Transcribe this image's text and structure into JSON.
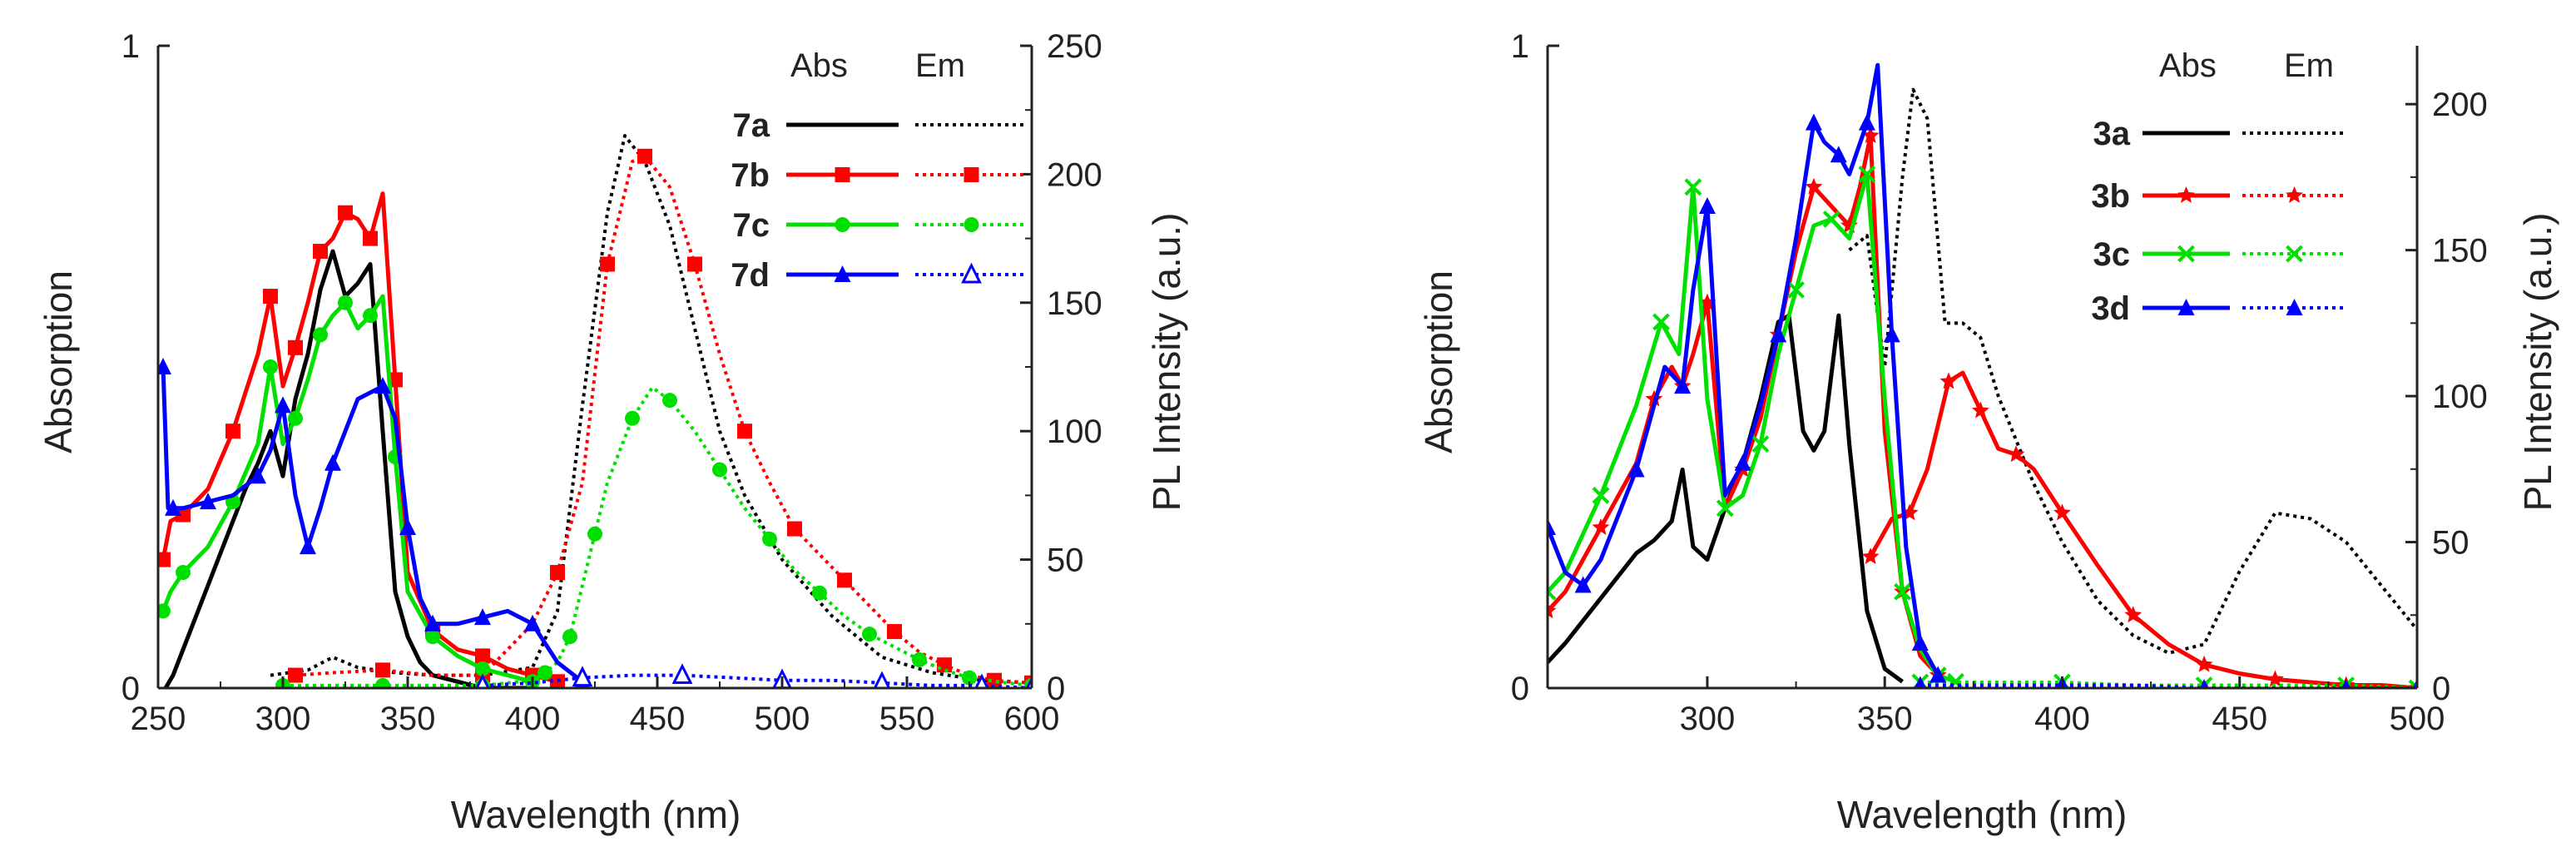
{
  "colors": {
    "black": "#000000",
    "red": "#ff0000",
    "green": "#00e000",
    "blue": "#0000ff"
  },
  "chart_data": [
    {
      "type": "line",
      "xlabel": "Wavelength (nm)",
      "ylabel": "Absorption",
      "y2label": "PL Intensity (a.u.)",
      "xlim": [
        250,
        600
      ],
      "ylim": [
        0,
        1
      ],
      "y2lim": [
        0,
        250
      ],
      "xticks": [
        250,
        300,
        350,
        400,
        450,
        500,
        550,
        600
      ],
      "xtick_labels": [
        "250",
        "300",
        "350",
        "400",
        "450",
        "500",
        "550",
        "600"
      ],
      "yticks": [
        0,
        1
      ],
      "ytick_labels": [
        "0",
        "1"
      ],
      "y2ticks": [
        0,
        50,
        100,
        150,
        200,
        250
      ],
      "y2tick_labels": [
        "0",
        "50",
        "100",
        "150",
        "200",
        "250"
      ],
      "legend": {
        "headers": [
          "Abs",
          "Em"
        ],
        "entries": [
          "7a",
          "7b",
          "7c",
          "7d"
        ],
        "position": "top-right"
      },
      "series": [
        {
          "name": "7a Abs",
          "color": "#000000",
          "style": "solid",
          "marker": "none",
          "axis": "left",
          "x": [
            253,
            256,
            260,
            265,
            270,
            275,
            280,
            285,
            290,
            295,
            300,
            305,
            310,
            315,
            320,
            325,
            330,
            335,
            340,
            345,
            350,
            355,
            360,
            370,
            380,
            390,
            400
          ],
          "y": [
            0.0,
            0.02,
            0.06,
            0.11,
            0.16,
            0.21,
            0.26,
            0.31,
            0.35,
            0.4,
            0.33,
            0.45,
            0.52,
            0.62,
            0.68,
            0.61,
            0.63,
            0.66,
            0.4,
            0.15,
            0.08,
            0.04,
            0.02,
            0.01,
            0.0,
            0.0,
            0.0
          ]
        },
        {
          "name": "7a Em",
          "color": "#000000",
          "style": "dotted",
          "marker": "none",
          "axis": "right",
          "x": [
            295,
            310,
            320,
            330,
            345,
            360,
            380,
            400,
            410,
            420,
            430,
            437,
            445,
            455,
            465,
            475,
            485,
            500,
            520,
            540,
            560,
            580,
            600
          ],
          "y": [
            5,
            7,
            12,
            8,
            6,
            5,
            5,
            8,
            30,
            110,
            185,
            215,
            205,
            180,
            140,
            100,
            75,
            50,
            28,
            12,
            6,
            3,
            2
          ]
        },
        {
          "name": "7b Abs",
          "color": "#ff0000",
          "style": "solid",
          "marker": "square",
          "axis": "left",
          "x": [
            252,
            255,
            260,
            270,
            280,
            290,
            295,
            300,
            305,
            310,
            315,
            320,
            325,
            330,
            335,
            340,
            345,
            350,
            360,
            370,
            380,
            390,
            400,
            410
          ],
          "y": [
            0.2,
            0.26,
            0.27,
            0.31,
            0.4,
            0.52,
            0.61,
            0.47,
            0.53,
            0.6,
            0.68,
            0.7,
            0.74,
            0.73,
            0.7,
            0.77,
            0.48,
            0.18,
            0.09,
            0.06,
            0.05,
            0.03,
            0.02,
            0.01
          ]
        },
        {
          "name": "7b Em",
          "color": "#ff0000",
          "style": "dotted",
          "marker": "square",
          "axis": "right",
          "x": [
            305,
            320,
            340,
            360,
            380,
            400,
            410,
            420,
            430,
            440,
            445,
            455,
            465,
            475,
            485,
            495,
            505,
            515,
            525,
            535,
            545,
            555,
            565,
            575,
            585,
            600
          ],
          "y": [
            5,
            6,
            7,
            5,
            5,
            25,
            45,
            80,
            165,
            205,
            207,
            195,
            165,
            130,
            100,
            80,
            62,
            52,
            42,
            32,
            22,
            14,
            9,
            5,
            3,
            2
          ]
        },
        {
          "name": "7c Abs",
          "color": "#00e000",
          "style": "solid",
          "marker": "circle",
          "axis": "left",
          "x": [
            252,
            255,
            260,
            270,
            280,
            290,
            295,
            300,
            305,
            310,
            315,
            320,
            325,
            330,
            335,
            340,
            345,
            350,
            360,
            370,
            380,
            390,
            400
          ],
          "y": [
            0.12,
            0.15,
            0.18,
            0.22,
            0.29,
            0.38,
            0.5,
            0.38,
            0.42,
            0.48,
            0.55,
            0.58,
            0.6,
            0.56,
            0.58,
            0.61,
            0.36,
            0.15,
            0.08,
            0.05,
            0.03,
            0.02,
            0.01
          ]
        },
        {
          "name": "7c Em",
          "color": "#00e000",
          "style": "dotted",
          "marker": "circle",
          "axis": "right",
          "x": [
            300,
            320,
            340,
            360,
            380,
            400,
            405,
            410,
            415,
            420,
            425,
            430,
            440,
            448,
            455,
            465,
            475,
            485,
            495,
            505,
            515,
            525,
            535,
            545,
            555,
            565,
            575,
            590,
            600
          ],
          "y": [
            1,
            1,
            1,
            1,
            1,
            3,
            6,
            10,
            20,
            40,
            60,
            80,
            105,
            117,
            112,
            100,
            85,
            70,
            58,
            46,
            37,
            28,
            21,
            16,
            11,
            7,
            4,
            2,
            1
          ]
        },
        {
          "name": "7d Abs",
          "color": "#0000ff",
          "style": "solid",
          "marker": "triangle",
          "axis": "left",
          "x": [
            252,
            254,
            256,
            260,
            270,
            280,
            290,
            295,
            300,
            305,
            310,
            315,
            320,
            330,
            340,
            345,
            350,
            355,
            360,
            370,
            380,
            390,
            400,
            410,
            420
          ],
          "y": [
            0.5,
            0.28,
            0.28,
            0.28,
            0.29,
            0.3,
            0.33,
            0.37,
            0.44,
            0.3,
            0.22,
            0.28,
            0.35,
            0.45,
            0.47,
            0.42,
            0.25,
            0.14,
            0.1,
            0.1,
            0.11,
            0.12,
            0.1,
            0.04,
            0.01
          ]
        },
        {
          "name": "7d Em",
          "color": "#0000ff",
          "style": "dotted",
          "marker": "triangle-open",
          "axis": "right",
          "x": [
            380,
            400,
            420,
            440,
            460,
            480,
            500,
            520,
            540,
            560,
            580,
            600
          ],
          "y": [
            1,
            2,
            4,
            5,
            5,
            4,
            3,
            3,
            2,
            1,
            1,
            0
          ]
        }
      ]
    },
    {
      "type": "line",
      "xlabel": "Wavelength (nm)",
      "ylabel": "Absorption",
      "y2label": "PL Intensity (a.u.)",
      "xlim": [
        255,
        500
      ],
      "ylim": [
        0,
        1
      ],
      "y2lim": [
        0,
        220
      ],
      "xticks": [
        300,
        350,
        400,
        450,
        500
      ],
      "xtick_labels": [
        "300",
        "350",
        "400",
        "450",
        "500"
      ],
      "yticks": [
        0,
        1
      ],
      "ytick_labels": [
        "0",
        "1"
      ],
      "y2ticks": [
        0,
        50,
        100,
        150,
        200
      ],
      "y2tick_labels": [
        "0",
        "50",
        "100",
        "150",
        "200"
      ],
      "legend": {
        "headers": [
          "Abs",
          "Em"
        ],
        "entries": [
          "3a",
          "3b",
          "3c",
          "3d"
        ],
        "position": "top-right"
      },
      "series": [
        {
          "name": "3a Abs",
          "color": "#000000",
          "style": "solid",
          "marker": "none",
          "axis": "left",
          "x": [
            255,
            260,
            270,
            280,
            285,
            290,
            293,
            296,
            300,
            305,
            310,
            315,
            320,
            323,
            327,
            330,
            333,
            337,
            340,
            345,
            350,
            355
          ],
          "y": [
            0.04,
            0.07,
            0.14,
            0.21,
            0.23,
            0.26,
            0.34,
            0.22,
            0.2,
            0.28,
            0.35,
            0.45,
            0.57,
            0.58,
            0.4,
            0.37,
            0.4,
            0.58,
            0.38,
            0.12,
            0.03,
            0.01
          ]
        },
        {
          "name": "3a Em",
          "color": "#000000",
          "style": "dotted",
          "marker": "none",
          "axis": "right",
          "x": [
            340,
            345,
            350,
            355,
            358,
            362,
            367,
            372,
            377,
            382,
            387,
            392,
            400,
            410,
            420,
            430,
            440,
            450,
            460,
            470,
            480,
            490,
            500
          ],
          "y": [
            150,
            155,
            110,
            175,
            205,
            195,
            125,
            125,
            120,
            100,
            85,
            70,
            50,
            30,
            18,
            12,
            15,
            40,
            60,
            58,
            50,
            35,
            20
          ]
        },
        {
          "name": "3b Abs",
          "color": "#ff0000",
          "style": "solid",
          "marker": "star",
          "axis": "left",
          "x": [
            255,
            260,
            270,
            280,
            285,
            290,
            293,
            296,
            300,
            305,
            310,
            315,
            320,
            325,
            330,
            335,
            340,
            343,
            346,
            350,
            355,
            360,
            365
          ],
          "y": [
            0.12,
            0.15,
            0.25,
            0.35,
            0.45,
            0.5,
            0.47,
            0.52,
            0.6,
            0.28,
            0.34,
            0.42,
            0.55,
            0.68,
            0.78,
            0.75,
            0.72,
            0.78,
            0.86,
            0.4,
            0.15,
            0.05,
            0.02
          ]
        },
        {
          "name": "3b Em",
          "color": "#ff0000",
          "style": "solid",
          "marker": "star",
          "axis": "right",
          "x": [
            346,
            352,
            357,
            362,
            368,
            372,
            377,
            382,
            387,
            392,
            400,
            410,
            420,
            430,
            440,
            450,
            460,
            470,
            480,
            490,
            500
          ],
          "y": [
            45,
            58,
            60,
            75,
            105,
            108,
            95,
            82,
            80,
            75,
            60,
            42,
            25,
            15,
            8,
            5,
            3,
            2,
            1,
            1,
            0
          ]
        },
        {
          "name": "3c Abs",
          "color": "#00e000",
          "style": "solid",
          "marker": "x",
          "axis": "left",
          "x": [
            255,
            260,
            270,
            280,
            287,
            292,
            296,
            300,
            305,
            310,
            315,
            320,
            325,
            330,
            335,
            340,
            345,
            350,
            355,
            360,
            365,
            370
          ],
          "y": [
            0.15,
            0.18,
            0.3,
            0.44,
            0.57,
            0.52,
            0.78,
            0.45,
            0.28,
            0.3,
            0.38,
            0.52,
            0.62,
            0.72,
            0.73,
            0.7,
            0.8,
            0.45,
            0.15,
            0.06,
            0.02,
            0.01
          ]
        },
        {
          "name": "3c Em",
          "color": "#00e000",
          "style": "dotted",
          "marker": "x",
          "axis": "right",
          "x": [
            360,
            380,
            400,
            420,
            440,
            460,
            480,
            500
          ],
          "y": [
            2,
            2,
            2,
            1,
            1,
            1,
            1,
            0
          ]
        },
        {
          "name": "3d Abs",
          "color": "#0000ff",
          "style": "solid",
          "marker": "triangle",
          "axis": "left",
          "x": [
            255,
            260,
            265,
            270,
            280,
            288,
            293,
            296,
            300,
            305,
            310,
            315,
            320,
            325,
            330,
            333,
            337,
            340,
            345,
            348,
            352,
            356,
            360,
            365
          ],
          "y": [
            0.25,
            0.18,
            0.16,
            0.2,
            0.34,
            0.5,
            0.47,
            0.62,
            0.75,
            0.3,
            0.35,
            0.44,
            0.55,
            0.7,
            0.88,
            0.85,
            0.83,
            0.8,
            0.88,
            0.97,
            0.55,
            0.22,
            0.07,
            0.02
          ]
        },
        {
          "name": "3d Em",
          "color": "#0000ff",
          "style": "dotted",
          "marker": "triangle",
          "axis": "right",
          "x": [
            360,
            380,
            400,
            420,
            440,
            460,
            480,
            500
          ],
          "y": [
            1,
            1,
            1,
            1,
            0,
            0,
            0,
            0
          ]
        }
      ]
    }
  ]
}
